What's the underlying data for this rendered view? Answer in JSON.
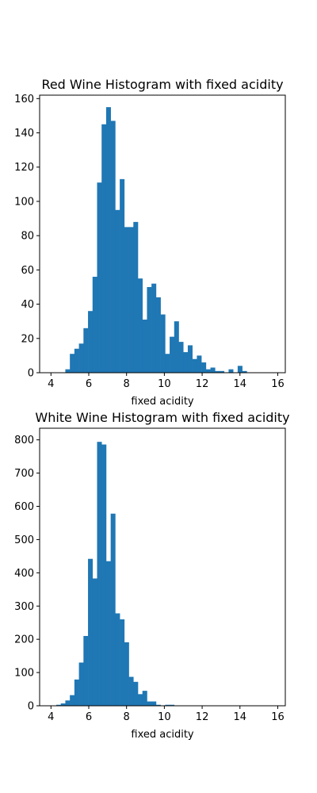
{
  "chart_data": [
    {
      "type": "bar",
      "title": "Red Wine Histogram with fixed acidity",
      "xlabel": "fixed acidity",
      "ylabel": "",
      "xlim": [
        3.4,
        16.4
      ],
      "ylim": [
        0,
        162
      ],
      "xticks": [
        4,
        6,
        8,
        10,
        12,
        14,
        16
      ],
      "yticks": [
        0,
        20,
        40,
        60,
        80,
        100,
        120,
        140,
        160
      ],
      "bin_start": 3.8,
      "bin_width": 0.24,
      "values": [
        0,
        0,
        0,
        0,
        2,
        11,
        14,
        17,
        26,
        36,
        56,
        111,
        145,
        155,
        147,
        95,
        113,
        85,
        85,
        88,
        55,
        31,
        50,
        52,
        44,
        34,
        11,
        21,
        30,
        18,
        12,
        16,
        8,
        10,
        6,
        2,
        3,
        1,
        1,
        0,
        2,
        0,
        4,
        1,
        0,
        0,
        0,
        0,
        0,
        0
      ],
      "color": "#1f77b4"
    },
    {
      "type": "bar",
      "title": "White Wine Histogram with fixed acidity",
      "xlabel": "fixed acidity",
      "ylabel": "",
      "xlim": [
        3.4,
        16.4
      ],
      "ylim": [
        0,
        835
      ],
      "xticks": [
        4,
        6,
        8,
        10,
        12,
        14,
        16
      ],
      "yticks": [
        0,
        100,
        200,
        300,
        400,
        500,
        600,
        700,
        800
      ],
      "bin_start": 3.8,
      "bin_width": 0.24,
      "values": [
        1,
        1,
        3,
        7,
        16,
        32,
        79,
        130,
        210,
        442,
        383,
        794,
        786,
        435,
        578,
        278,
        260,
        191,
        87,
        72,
        35,
        45,
        13,
        13,
        3,
        0,
        3,
        3,
        0,
        0,
        0,
        0,
        0,
        0,
        0,
        0,
        0,
        0,
        0,
        0,
        0,
        0,
        0,
        0,
        0,
        0,
        0,
        0,
        0,
        0
      ],
      "color": "#1f77b4"
    }
  ]
}
